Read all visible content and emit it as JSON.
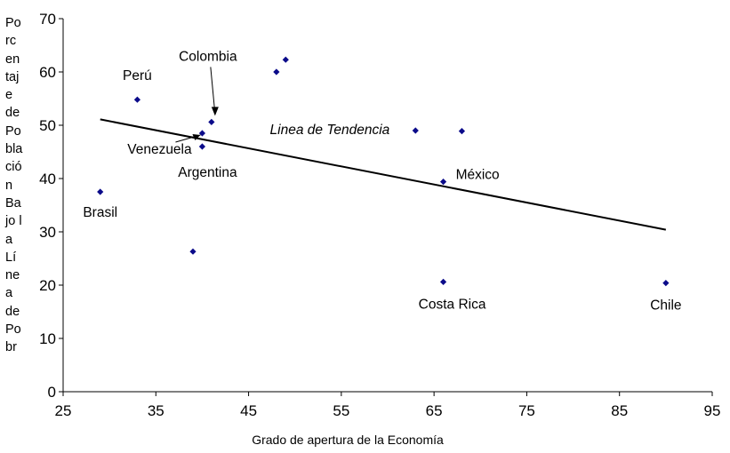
{
  "chart_data": {
    "type": "scatter",
    "title": "",
    "xlabel": "Grado de apertura de la Economía",
    "ylabel": "Porcentaje de Población Bajo la Línea de Pobr",
    "xlim": [
      25,
      95
    ],
    "ylim": [
      0,
      70
    ],
    "xticks": [
      25,
      35,
      45,
      55,
      65,
      75,
      85,
      95
    ],
    "yticks": [
      0,
      10,
      20,
      30,
      40,
      50,
      60,
      70
    ],
    "marker_color": "#0b0b8a",
    "points": [
      {
        "x": 29,
        "y": 37.5
      },
      {
        "x": 33,
        "y": 54.8
      },
      {
        "x": 39,
        "y": 26.3
      },
      {
        "x": 40,
        "y": 48.5
      },
      {
        "x": 40,
        "y": 46
      },
      {
        "x": 41,
        "y": 50.6
      },
      {
        "x": 48,
        "y": 60
      },
      {
        "x": 49,
        "y": 62.3
      },
      {
        "x": 63,
        "y": 49
      },
      {
        "x": 66,
        "y": 39.4
      },
      {
        "x": 66,
        "y": 20.6
      },
      {
        "x": 68,
        "y": 48.9
      },
      {
        "x": 90,
        "y": 20.4
      }
    ],
    "trendline": {
      "label": "Linea de Tendencia",
      "x": [
        29,
        90
      ],
      "y": [
        51.1,
        30.4
      ]
    },
    "annotations": [
      {
        "text": "Perú",
        "x": 33,
        "y": 54.8
      },
      {
        "text": "Colombia",
        "x": 41,
        "y": 50.6
      },
      {
        "text": "Venezuela",
        "x": 40,
        "y": 48.5
      },
      {
        "text": "Argentina",
        "x": 40,
        "y": 46
      },
      {
        "text": "Brasil",
        "x": 29,
        "y": 37.5
      },
      {
        "text": "México",
        "x": 66,
        "y": 39.4
      },
      {
        "text": "Costa Rica",
        "x": 66,
        "y": 20.6
      },
      {
        "text": "Chile",
        "x": 90,
        "y": 20.4
      }
    ]
  }
}
